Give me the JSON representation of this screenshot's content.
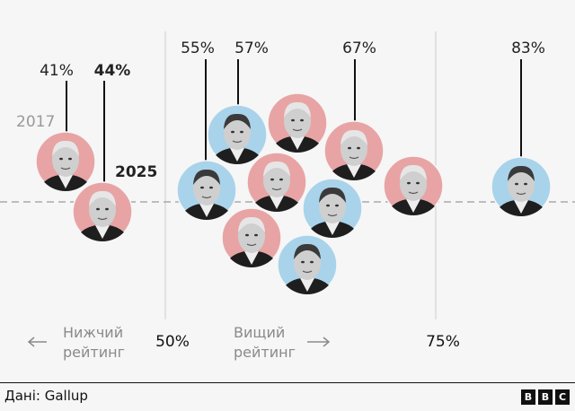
{
  "chart_data": {
    "type": "scatter",
    "title": "",
    "x_ticks": [
      "50%",
      "75%"
    ],
    "x_tick_values": [
      50,
      75
    ],
    "axis_notes": {
      "lower": [
        "Нижчий",
        "рейтинг"
      ],
      "higher": [
        "Вищий",
        "рейтинг"
      ]
    },
    "reference_line": "dashed horizontal",
    "colors": {
      "republican": "#e8a4a4",
      "democrat": "#a9d3ea"
    },
    "points": [
      {
        "party": "republican",
        "value": 41,
        "label": "41%",
        "tag": "2017"
      },
      {
        "party": "republican",
        "value": 44,
        "label": "44%",
        "tag": "2025"
      },
      {
        "party": "democrat",
        "value": 55,
        "label": "55%"
      },
      {
        "party": "democrat",
        "value": 57,
        "label": "57%"
      },
      {
        "party": "republican",
        "value": 62
      },
      {
        "party": "republican",
        "value": 60
      },
      {
        "party": "republican",
        "value": 67,
        "label": "67%"
      },
      {
        "party": "democrat",
        "value": 65
      },
      {
        "party": "republican",
        "value": 58
      },
      {
        "party": "democrat",
        "value": 63
      },
      {
        "party": "republican",
        "value": 73
      },
      {
        "party": "democrat",
        "value": 83,
        "label": "83%"
      }
    ]
  },
  "footer": {
    "source": "Дані: Gallup",
    "logo": [
      "B",
      "B",
      "C"
    ]
  }
}
